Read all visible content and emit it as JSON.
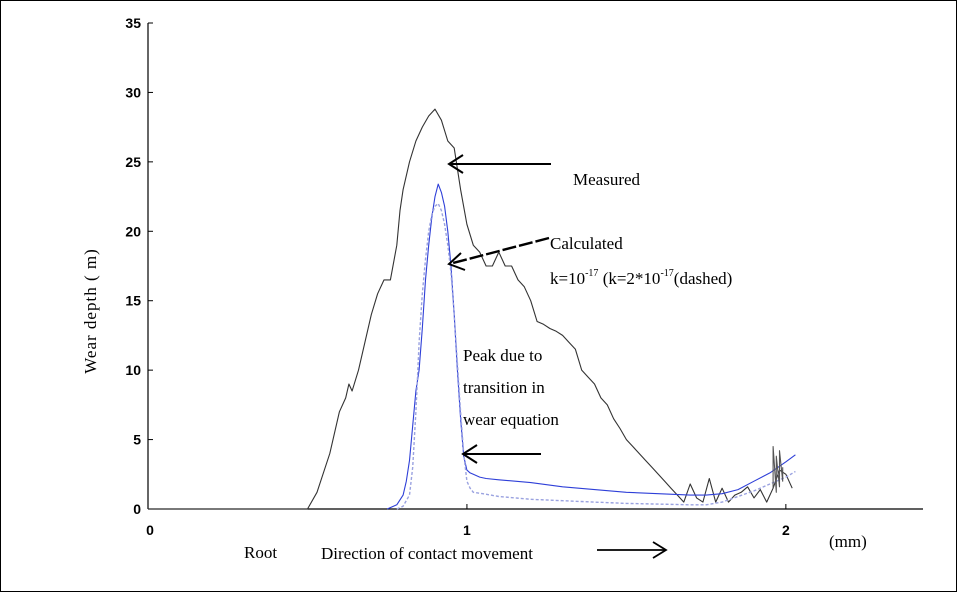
{
  "chart_data": {
    "type": "line",
    "ylabel": "Wear depth ( m)",
    "xunit": "(mm)",
    "xlim": [
      0,
      2.43
    ],
    "ylim": [
      0,
      35
    ],
    "xticks": [
      {
        "value": 0,
        "label": "0"
      },
      {
        "value": 1,
        "label": "1"
      },
      {
        "value": 2,
        "label": "2"
      }
    ],
    "yticks": [
      {
        "value": 0,
        "label": "0"
      },
      {
        "value": 5,
        "label": "5"
      },
      {
        "value": 10,
        "label": "10"
      },
      {
        "value": 15,
        "label": "15"
      },
      {
        "value": 20,
        "label": "20"
      },
      {
        "value": 25,
        "label": "25"
      },
      {
        "value": 30,
        "label": "30"
      },
      {
        "value": 35,
        "label": "35"
      }
    ],
    "grid": false,
    "series": [
      {
        "color": "#333333",
        "style": "solid",
        "x": [
          0,
          0.5,
          0.53,
          0.57,
          0.6,
          0.62,
          0.63,
          0.64,
          0.66,
          0.68,
          0.7,
          0.72,
          0.74,
          0.76,
          0.78,
          0.79,
          0.8,
          0.82,
          0.84,
          0.86,
          0.88,
          0.9,
          0.92,
          0.94,
          0.96,
          0.98,
          1.0,
          1.02,
          1.04,
          1.06,
          1.08,
          1.1,
          1.12,
          1.14,
          1.16,
          1.18,
          1.2,
          1.22,
          1.24,
          1.26,
          1.28,
          1.3,
          1.32,
          1.34,
          1.36,
          1.38,
          1.4,
          1.42,
          1.44,
          1.46,
          1.48,
          1.5,
          1.52,
          1.54,
          1.56,
          1.58,
          1.6,
          1.62,
          1.64,
          1.66,
          1.68,
          1.7,
          1.72,
          1.74,
          1.76,
          1.78,
          1.8,
          1.82,
          1.84,
          1.86,
          1.88,
          1.9,
          1.92,
          1.94,
          1.96,
          1.98,
          2.0,
          2.02
        ],
        "y": [
          0,
          0,
          1.2,
          4,
          7,
          8,
          9,
          8.5,
          10,
          12,
          14,
          15.5,
          16.5,
          16.5,
          19,
          21.5,
          23,
          25,
          26.5,
          27.5,
          28.3,
          28.8,
          28,
          26.5,
          26,
          23,
          20.5,
          19,
          18.5,
          17.5,
          17.5,
          18.5,
          17.5,
          17.5,
          16.5,
          16,
          15,
          13.5,
          13.3,
          13,
          12.8,
          12.5,
          12,
          11.5,
          10,
          9.5,
          9,
          8,
          7.5,
          6.5,
          5.8,
          5,
          4.5,
          4,
          3.5,
          3,
          2.5,
          2,
          1.5,
          1,
          0.5,
          1.8,
          0.8,
          0.5,
          2.2,
          0.5,
          1.5,
          0.5,
          1,
          1.2,
          1.6,
          0.8,
          1.4,
          0.5,
          1.5,
          2.8,
          2.5,
          1.5
        ]
      },
      {
        "color": "#2e3fd8",
        "style": "solid",
        "x": [
          0.75,
          0.78,
          0.8,
          0.81,
          0.82,
          0.83,
          0.84,
          0.85,
          0.86,
          0.87,
          0.88,
          0.89,
          0.9,
          0.91,
          0.92,
          0.93,
          0.94,
          0.95,
          0.96,
          0.97,
          0.98,
          0.99,
          1.0,
          1.01,
          1.02,
          1.04,
          1.06,
          1.1,
          1.2,
          1.3,
          1.4,
          1.5,
          1.6,
          1.7,
          1.75,
          1.8,
          1.85,
          1.9,
          1.95,
          2.0,
          2.03
        ],
        "y": [
          0,
          0.3,
          1,
          2,
          3.5,
          6,
          8.5,
          10,
          13,
          16.5,
          19,
          21,
          22.5,
          23.4,
          22.8,
          21.8,
          20,
          17.5,
          14,
          10,
          6.5,
          3.8,
          2.8,
          2.6,
          2.5,
          2.3,
          2.2,
          2.1,
          1.9,
          1.6,
          1.4,
          1.2,
          1.1,
          1.0,
          1.0,
          1.1,
          1.4,
          2.0,
          2.6,
          3.4,
          3.9
        ]
      },
      {
        "color": "#9aa2e0",
        "style": "dashed",
        "x": [
          0.78,
          0.8,
          0.82,
          0.83,
          0.84,
          0.85,
          0.86,
          0.87,
          0.88,
          0.89,
          0.9,
          0.91,
          0.92,
          0.93,
          0.94,
          0.95,
          0.96,
          0.97,
          0.98,
          0.99,
          1.0,
          1.01,
          1.02,
          1.05,
          1.1,
          1.2,
          1.3,
          1.4,
          1.5,
          1.6,
          1.7,
          1.75,
          1.8,
          1.85,
          1.9,
          1.95,
          2.0,
          2.03
        ],
        "y": [
          0,
          0.2,
          1,
          3,
          7,
          12,
          15.5,
          18,
          20,
          21.2,
          21.8,
          22,
          21.5,
          20.5,
          19,
          17,
          14,
          10.5,
          7,
          4,
          2,
          1.5,
          1.2,
          1.1,
          0.9,
          0.7,
          0.6,
          0.5,
          0.4,
          0.35,
          0.3,
          0.3,
          0.5,
          0.9,
          1.3,
          1.8,
          2.3,
          2.7
        ]
      },
      {
        "color": "#555555",
        "style": "solid",
        "x": [
          1.96,
          1.96,
          1.97,
          1.97,
          1.98,
          1.98,
          1.99,
          1.99
        ],
        "y": [
          1.5,
          4.5,
          1.2,
          3.8,
          1.6,
          4.2,
          2.0,
          3.0
        ]
      }
    ],
    "annotations": [
      {
        "id": "measured",
        "text": "Measured"
      },
      {
        "id": "calculated",
        "text": "Calculated"
      },
      {
        "id": "kline",
        "parts": {
          "a": "k=10",
          "b": "-17",
          "c": " (k=2*10",
          "d": "-17",
          "e": "(dashed)"
        }
      },
      {
        "id": "peak",
        "lines": [
          "Peak due to",
          "transition in",
          "wear equation"
        ]
      },
      {
        "id": "root",
        "text": "Root"
      },
      {
        "id": "direction",
        "text": "Direction of contact movement"
      }
    ]
  }
}
